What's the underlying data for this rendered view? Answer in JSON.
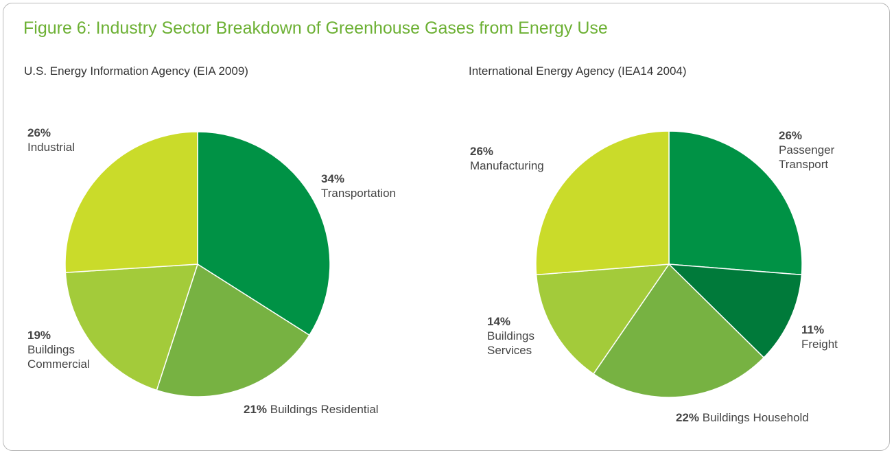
{
  "title": "Figure 6: Industry Sector Breakdown of Greenhouse Gases from Energy Use",
  "chart_data": [
    {
      "type": "pie",
      "title": "U.S. Energy Information Agency (EIA 2009)",
      "categories": [
        "Transportation",
        "Buildings Residential",
        "Buildings Commercial",
        "Industrial"
      ],
      "values": [
        34,
        21,
        19,
        26
      ],
      "value_labels": [
        "34%",
        "21%",
        "19%",
        "26%"
      ],
      "colors": [
        "#009245",
        "#77b242",
        "#a3cb3a",
        "#cadb2a"
      ]
    },
    {
      "type": "pie",
      "title": "International Energy Agency (IEA14 2004)",
      "categories": [
        "Passenger Transport",
        "Freight",
        "Buildings Household",
        "Buildings Services",
        "Manufacturing"
      ],
      "values": [
        26,
        11,
        22,
        14,
        26
      ],
      "value_labels": [
        "26%",
        "11%",
        "22%",
        "14%",
        "26%"
      ],
      "colors": [
        "#009245",
        "#007a3a",
        "#77b242",
        "#a3cb3a",
        "#cadb2a"
      ]
    }
  ]
}
